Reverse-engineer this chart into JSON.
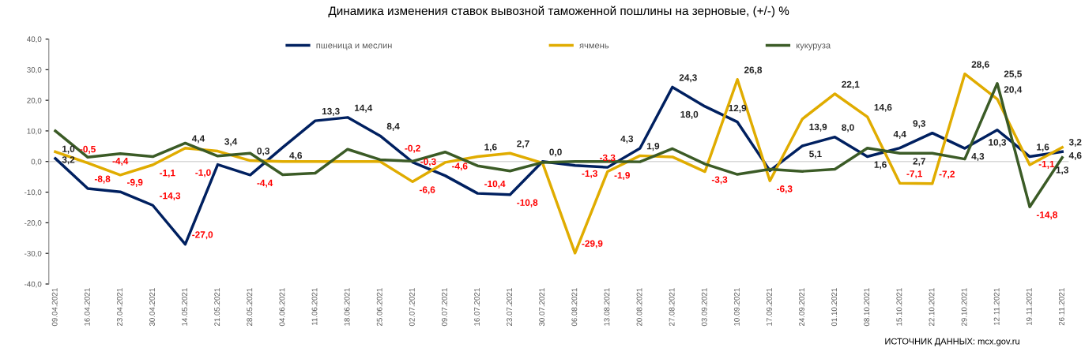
{
  "chart_data": {
    "type": "line",
    "title": "Динамика изменения ставок вывозной таможенной пошлины на зерновые, (+/-) %",
    "categories": [
      "09.04.2021",
      "16.04.2021",
      "23.04.2021",
      "30.04.2021",
      "14.05.2021",
      "21.05.2021",
      "28.05.2021",
      "04.06.2021",
      "11.06.2021",
      "18.06.2021",
      "25.06.2021",
      "02.07.2021",
      "09.07.2021",
      "16.07.2021",
      "23.07.2021",
      "30.07.2021",
      "06.08.2021",
      "13.08.2021",
      "20.08.2021",
      "27.08.2021",
      "03.09.2021",
      "10.09.2021",
      "17.09.2021",
      "24.09.2021",
      "01.10.2021",
      "08.10.2021",
      "15.10.2021",
      "22.10.2021",
      "29.10.2021",
      "12.11.2021",
      "19.11.2021",
      "26.11.2021"
    ],
    "series": [
      {
        "name": "пшеница и меслин",
        "color": "#002060",
        "values": [
          1.0,
          -8.8,
          -9.9,
          -14.3,
          -27.0,
          -1.0,
          -4.4,
          4.6,
          13.3,
          14.4,
          8.4,
          -0.2,
          -4.6,
          -10.4,
          -10.8,
          0.0,
          -1.3,
          -1.9,
          4.3,
          24.3,
          18.0,
          12.9,
          -3,
          5.1,
          8.0,
          1.6,
          4.4,
          9.3,
          4.3,
          10.3,
          1.6,
          3.2
        ],
        "value_labels": [
          "1,0",
          "-8,8",
          "-9,9",
          "-14,3",
          "-27,0",
          "-1,0",
          "-4,4",
          "4,6",
          "13,3",
          "14,4",
          "8,4",
          "-0,2",
          "-4,6",
          "-10,4",
          "-10,8",
          "0,0",
          "-1,3",
          "-1,9",
          "4,3",
          "24,3",
          "18,0",
          "12,9",
          null,
          "5,1",
          "8,0",
          "1,6",
          "4,4",
          "9,3",
          "4,3",
          "10,3",
          "1,6",
          "3,2"
        ]
      },
      {
        "name": "ячмень",
        "color": "#e0ac00",
        "values": [
          3.2,
          -0.5,
          -4.4,
          -1.1,
          4.4,
          3.4,
          0.3,
          0,
          0,
          0,
          0,
          -6.6,
          -0.3,
          1.6,
          2.7,
          -0.5,
          -29.9,
          -3.3,
          1.9,
          1.5,
          -3.3,
          26.8,
          -6.3,
          13.9,
          22.1,
          14.6,
          -7.1,
          -7.2,
          28.6,
          20.4,
          -1.1,
          4.6
        ],
        "value_labels": [
          "3,2",
          "-0,5",
          "-4,4",
          "-1,1",
          "4,4",
          "3,4",
          "0,3",
          null,
          null,
          null,
          null,
          "-6,6",
          "-0,3",
          "1,6",
          "2,7",
          null,
          "-29,9",
          "-3,3",
          "1,9",
          null,
          "-3,3",
          "26,8",
          "-6,3",
          "13,9",
          "22,1",
          "14,6",
          "-7,1",
          "-7,2",
          "28,6",
          "20,4",
          "-1,1",
          "4,6"
        ]
      },
      {
        "name": "кукуруза",
        "color": "#3b5b26",
        "values": [
          10.0,
          1.4,
          2.6,
          1.6,
          6.0,
          1.8,
          2.7,
          -4.3,
          -3.8,
          4.0,
          0.6,
          0.1,
          3.1,
          -1.4,
          -3.1,
          -0.3,
          0,
          0,
          -0.1,
          4.2,
          -0.8,
          -4.2,
          -2.5,
          -3.2,
          -2.5,
          4.4,
          2.7,
          2.7,
          0.8,
          25.5,
          -14.8,
          1.3
        ],
        "value_labels": [
          null,
          null,
          null,
          null,
          null,
          null,
          null,
          null,
          null,
          null,
          null,
          null,
          null,
          null,
          null,
          null,
          null,
          null,
          null,
          null,
          null,
          null,
          null,
          null,
          null,
          null,
          null,
          "2,7",
          null,
          "25,5",
          "-14,8",
          "1,3"
        ]
      }
    ],
    "ylim": [
      -40,
      40
    ],
    "yticks": [
      {
        "value": -40,
        "label": "-40,0"
      },
      {
        "value": -30,
        "label": "-30,0"
      },
      {
        "value": -20,
        "label": "-20,0"
      },
      {
        "value": -10,
        "label": "-10,0"
      },
      {
        "value": 0,
        "label": "0,0"
      },
      {
        "value": 10,
        "label": "10,0"
      },
      {
        "value": 20,
        "label": "20,0"
      },
      {
        "value": 30,
        "label": "30,0"
      },
      {
        "value": 40,
        "label": "40,0"
      }
    ],
    "ref_lines": [
      {
        "axis": "y",
        "value": 0,
        "color": "#d9d9d9",
        "line_style": "solid"
      }
    ],
    "grid": false,
    "legend": "top",
    "marker": "none",
    "line_style": "solid",
    "annotations": [
      "ИСТОЧНИК ДАННЫХ: mcx.gov.ru"
    ]
  }
}
